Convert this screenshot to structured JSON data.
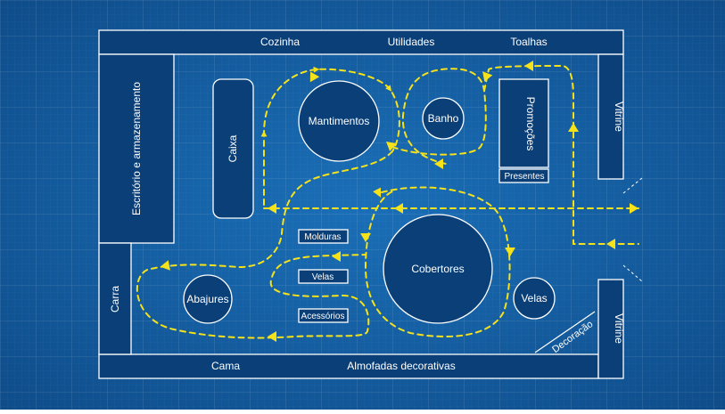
{
  "colors": {
    "background_center": "#1a6fb8",
    "background_edge": "#0e4a87",
    "block_fill": "#0a3f78",
    "outline": "#ffffff",
    "path": "#f5e21a",
    "text": "#ffffff"
  },
  "top_wall": {
    "labels": [
      "Cozinha",
      "Utilidades",
      "Toalhas"
    ]
  },
  "bottom_wall": {
    "labels": [
      "Cama",
      "Almofadas decorativas"
    ]
  },
  "left_zones": {
    "office": "Escritório e armazenamento",
    "car": "Carra"
  },
  "right_zones": {
    "vitrine_top": "Vitrine",
    "vitrine_bottom": "Vitrine"
  },
  "fixtures": {
    "checkout": "Caixa",
    "groceries": "Mantimentos",
    "bath": "Banho",
    "promotions": "Promoções",
    "gifts": "Presentes",
    "frames": "Molduras",
    "candles_rect": "Velas",
    "accessories": "Acessórios",
    "blankets": "Cobertores",
    "candles_round": "Velas",
    "lamps": "Abajures",
    "decoration": "Decoração"
  }
}
